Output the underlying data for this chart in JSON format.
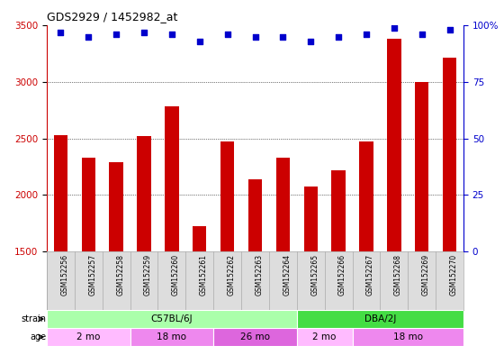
{
  "title": "GDS2929 / 1452982_at",
  "samples": [
    "GSM152256",
    "GSM152257",
    "GSM152258",
    "GSM152259",
    "GSM152260",
    "GSM152261",
    "GSM152262",
    "GSM152263",
    "GSM152264",
    "GSM152265",
    "GSM152266",
    "GSM152267",
    "GSM152268",
    "GSM152269",
    "GSM152270"
  ],
  "counts": [
    2530,
    2330,
    2290,
    2520,
    2780,
    1720,
    2470,
    2140,
    2330,
    2070,
    2220,
    2470,
    3380,
    3000,
    3210
  ],
  "percentile_ranks": [
    97,
    95,
    96,
    97,
    96,
    93,
    96,
    95,
    95,
    93,
    95,
    96,
    99,
    96,
    98
  ],
  "bar_color": "#cc0000",
  "dot_color": "#0000cc",
  "ylim_left": [
    1500,
    3500
  ],
  "ylim_right": [
    0,
    100
  ],
  "yticks_left": [
    1500,
    2000,
    2500,
    3000,
    3500
  ],
  "yticks_right": [
    0,
    25,
    50,
    75,
    100
  ],
  "grid_values": [
    2000,
    2500,
    3000
  ],
  "strain_groups": [
    {
      "label": "C57BL/6J",
      "start": 0,
      "end": 9,
      "color": "#aaffaa"
    },
    {
      "label": "DBA/2J",
      "start": 9,
      "end": 15,
      "color": "#44dd44"
    }
  ],
  "age_groups": [
    {
      "label": "2 mo",
      "start": 0,
      "end": 3,
      "color": "#ffbbff"
    },
    {
      "label": "18 mo",
      "start": 3,
      "end": 6,
      "color": "#ee88ee"
    },
    {
      "label": "26 mo",
      "start": 6,
      "end": 9,
      "color": "#dd66dd"
    },
    {
      "label": "2 mo",
      "start": 9,
      "end": 11,
      "color": "#ffbbff"
    },
    {
      "label": "18 mo",
      "start": 11,
      "end": 15,
      "color": "#ee88ee"
    }
  ],
  "legend_count_color": "#cc0000",
  "legend_dot_color": "#0000cc",
  "plot_bg_color": "#ffffff",
  "xtick_bg_color": "#dddddd",
  "title_color": "#000000",
  "left_axis_color": "#cc0000",
  "right_axis_color": "#0000cc"
}
